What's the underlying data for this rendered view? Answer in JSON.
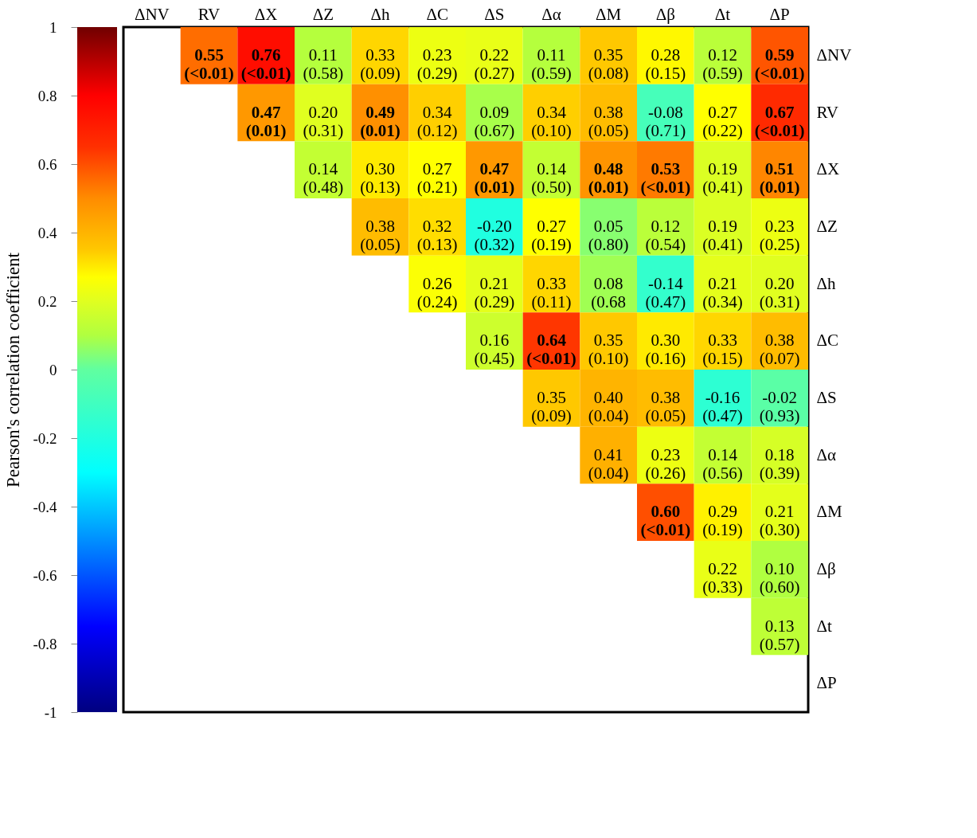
{
  "chart_data": {
    "type": "heatmap",
    "clabel": "Pearson's correlation coefficient",
    "categories": [
      "ΔNV",
      "RV",
      "ΔX",
      "ΔZ",
      "Δh",
      "ΔC",
      "ΔS",
      "Δα",
      "ΔM",
      "Δβ",
      "Δt",
      "ΔP"
    ],
    "y_categories": [
      "ΔNV",
      "RV",
      "ΔX",
      "ΔZ",
      "Δh",
      "ΔC",
      "ΔS",
      "Δα",
      "ΔM",
      "Δβ",
      "Δt",
      "ΔP"
    ],
    "cells": [
      [
        null,
        0.55,
        0.76,
        0.11,
        0.33,
        0.23,
        0.22,
        0.11,
        0.35,
        0.28,
        0.12,
        0.59
      ],
      [
        null,
        null,
        0.47,
        0.2,
        0.49,
        0.34,
        0.09,
        0.34,
        0.38,
        -0.08,
        0.27,
        0.67
      ],
      [
        null,
        null,
        null,
        0.14,
        0.3,
        0.27,
        0.47,
        0.14,
        0.48,
        0.53,
        0.19,
        0.51
      ],
      [
        null,
        null,
        null,
        null,
        0.38,
        0.32,
        -0.2,
        0.27,
        0.05,
        0.12,
        0.19,
        0.23
      ],
      [
        null,
        null,
        null,
        null,
        null,
        0.26,
        0.21,
        0.33,
        0.08,
        -0.14,
        0.21,
        0.2
      ],
      [
        null,
        null,
        null,
        null,
        null,
        null,
        0.16,
        0.64,
        0.35,
        0.3,
        0.33,
        0.38
      ],
      [
        null,
        null,
        null,
        null,
        null,
        null,
        null,
        0.35,
        0.4,
        0.38,
        -0.16,
        -0.02
      ],
      [
        null,
        null,
        null,
        null,
        null,
        null,
        null,
        null,
        0.41,
        0.23,
        0.14,
        0.18
      ],
      [
        null,
        null,
        null,
        null,
        null,
        null,
        null,
        null,
        null,
        0.6,
        0.29,
        0.21
      ],
      [
        null,
        null,
        null,
        null,
        null,
        null,
        null,
        null,
        null,
        null,
        0.22,
        0.1
      ],
      [
        null,
        null,
        null,
        null,
        null,
        null,
        null,
        null,
        null,
        null,
        null,
        0.13
      ],
      [
        null,
        null,
        null,
        null,
        null,
        null,
        null,
        null,
        null,
        null,
        null,
        null
      ]
    ],
    "cell_labels": [
      [
        null,
        "0.55\n(<0.01)",
        "0.76\n(<0.01)",
        "0.11\n(0.58)",
        "0.33\n(0.09)",
        "0.23\n(0.29)",
        "0.22\n(0.27)",
        "0.11\n(0.59)",
        "0.35\n(0.08)",
        "0.28\n(0.15)",
        "0.12\n(0.59)",
        "0.59\n(<0.01)"
      ],
      [
        null,
        null,
        "0.47\n(0.01)",
        "0.20\n(0.31)",
        "0.49\n(0.01)",
        "0.34\n(0.12)",
        "0.09\n(0.67)",
        "0.34\n(0.10)",
        "0.38\n(0.05)",
        "-0.08\n(0.71)",
        "0.27\n(0.22)",
        "0.67\n(<0.01)"
      ],
      [
        null,
        null,
        null,
        "0.14\n(0.48)",
        "0.30\n(0.13)",
        "0.27\n(0.21)",
        "0.47\n(0.01)",
        "0.14\n(0.50)",
        "0.48\n(0.01)",
        "0.53\n(<0.01)",
        "0.19\n(0.41)",
        "0.51\n(0.01)"
      ],
      [
        null,
        null,
        null,
        null,
        "0.38\n(0.05)",
        "0.32\n(0.13)",
        "-0.20\n(0.32)",
        "0.27\n(0.19)",
        "0.05\n(0.80)",
        "0.12\n(0.54)",
        "0.19\n(0.41)",
        "0.23\n(0.25)"
      ],
      [
        null,
        null,
        null,
        null,
        null,
        "0.26\n(0.24)",
        "0.21\n(0.29)",
        "0.33\n(0.11)",
        "0.08\n(0.68",
        "-0.14\n(0.47)",
        "0.21\n(0.34)",
        "0.20\n(0.31)"
      ],
      [
        null,
        null,
        null,
        null,
        null,
        null,
        "0.16\n(0.45)",
        "0.64\n(<0.01)",
        "0.35\n(0.10)",
        "0.30\n(0.16)",
        "0.33\n(0.15)",
        "0.38\n(0.07)"
      ],
      [
        null,
        null,
        null,
        null,
        null,
        null,
        null,
        "0.35\n(0.09)",
        "0.40\n(0.04)",
        "0.38\n(0.05)",
        "-0.16\n(0.47)",
        "-0.02\n(0.93)"
      ],
      [
        null,
        null,
        null,
        null,
        null,
        null,
        null,
        null,
        "0.41\n(0.04)",
        "0.23\n(0.26)",
        "0.14\n(0.56)",
        "0.18\n(0.39)"
      ],
      [
        null,
        null,
        null,
        null,
        null,
        null,
        null,
        null,
        null,
        "0.60\n(<0.01)",
        "0.29\n(0.19)",
        "0.21\n(0.30)"
      ],
      [
        null,
        null,
        null,
        null,
        null,
        null,
        null,
        null,
        null,
        null,
        "0.22\n(0.33)",
        "0.10\n(0.60)"
      ],
      [
        null,
        null,
        null,
        null,
        null,
        null,
        null,
        null,
        null,
        null,
        null,
        "0.13\n(0.57)"
      ],
      [
        null,
        null,
        null,
        null,
        null,
        null,
        null,
        null,
        null,
        null,
        null,
        null
      ]
    ],
    "clim": [
      -1,
      1
    ],
    "cticks": [
      -1,
      -0.8,
      -0.6,
      -0.4,
      -0.2,
      0,
      0.2,
      0.4,
      0.6,
      0.8,
      1
    ]
  }
}
